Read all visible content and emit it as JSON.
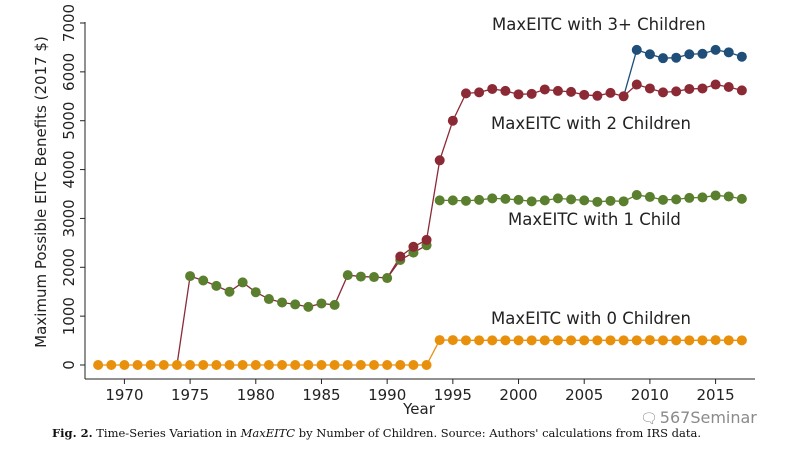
{
  "chart_data": {
    "type": "line",
    "xlabel": "Year",
    "ylabel": "Maximum Possible EITC Benefits (2017 $)",
    "xlim": [
      1967,
      2018
    ],
    "ylim": [
      0,
      7000
    ],
    "xticks": [
      1970,
      1975,
      1980,
      1985,
      1990,
      1995,
      2000,
      2005,
      2010,
      2015
    ],
    "yticks": [
      0,
      1000,
      2000,
      3000,
      4000,
      5000,
      6000,
      7000
    ],
    "grid": false,
    "series": [
      {
        "name": "MaxEITC with 0 Children",
        "color": "#e8900c",
        "line_color": "#e8900c",
        "x": [
          1968,
          1969,
          1970,
          1971,
          1972,
          1973,
          1974,
          1975,
          1976,
          1977,
          1978,
          1979,
          1980,
          1981,
          1982,
          1983,
          1984,
          1985,
          1986,
          1987,
          1988,
          1989,
          1990,
          1991,
          1992,
          1993,
          1994,
          1995,
          1996,
          1997,
          1998,
          1999,
          2000,
          2001,
          2002,
          2003,
          2004,
          2005,
          2006,
          2007,
          2008,
          2009,
          2010,
          2011,
          2012,
          2013,
          2014,
          2015,
          2016,
          2017
        ],
        "y": [
          0,
          0,
          0,
          0,
          0,
          0,
          0,
          0,
          0,
          0,
          0,
          0,
          0,
          0,
          0,
          0,
          0,
          0,
          0,
          0,
          0,
          0,
          0,
          0,
          0,
          0,
          510,
          510,
          505,
          505,
          505,
          505,
          505,
          505,
          505,
          505,
          505,
          505,
          505,
          505,
          505,
          505,
          510,
          505,
          505,
          505,
          505,
          510,
          505,
          505
        ]
      },
      {
        "name": "MaxEITC with 1 Child",
        "color": "#5a7f2e",
        "line_color": "#8a2a3a",
        "x": [
          1975,
          1976,
          1977,
          1978,
          1979,
          1980,
          1981,
          1982,
          1983,
          1984,
          1985,
          1986,
          1987,
          1988,
          1989,
          1990,
          1991,
          1992,
          1993,
          1994,
          1995,
          1996,
          1997,
          1998,
          1999,
          2000,
          2001,
          2002,
          2003,
          2004,
          2005,
          2006,
          2007,
          2008,
          2009,
          2010,
          2011,
          2012,
          2013,
          2014,
          2015,
          2016,
          2017
        ],
        "y": [
          1820,
          1730,
          1620,
          1500,
          1690,
          1490,
          1350,
          1280,
          1240,
          1190,
          1260,
          1230,
          1840,
          1810,
          1800,
          1780,
          2150,
          2300,
          2450,
          3370,
          3370,
          3360,
          3380,
          3410,
          3400,
          3380,
          3350,
          3370,
          3410,
          3390,
          3370,
          3340,
          3360,
          3350,
          3480,
          3440,
          3380,
          3390,
          3420,
          3430,
          3470,
          3450,
          3400
        ]
      },
      {
        "name": "MaxEITC with 2 Children",
        "color": "#8b2a35",
        "line_color": "#8b2a35",
        "x": [
          1990,
          1991,
          1992,
          1993,
          1994,
          1995,
          1996,
          1997,
          1998,
          1999,
          2000,
          2001,
          2002,
          2003,
          2004,
          2005,
          2006,
          2007,
          2008,
          2009,
          2010,
          2011,
          2012,
          2013,
          2014,
          2015,
          2016,
          2017
        ],
        "y": [
          1780,
          2220,
          2420,
          2560,
          4190,
          5000,
          5560,
          5580,
          5650,
          5610,
          5540,
          5550,
          5640,
          5610,
          5590,
          5530,
          5510,
          5570,
          5500,
          5740,
          5660,
          5580,
          5600,
          5650,
          5660,
          5740,
          5690,
          5620
        ]
      },
      {
        "name": "MaxEITC with 3+ Children",
        "color": "#1f4e79",
        "line_color": "#1f4e79",
        "x": [
          2008,
          2009,
          2010,
          2011,
          2012,
          2013,
          2014,
          2015,
          2016,
          2017
        ],
        "y": [
          5500,
          6450,
          6360,
          6280,
          6290,
          6360,
          6370,
          6450,
          6400,
          6310
        ]
      }
    ],
    "series_labels": {
      "three_plus": "MaxEITC with 3+ Children",
      "two": "MaxEITC with 2 Children",
      "one": "MaxEITC with 1 Child",
      "zero": "MaxEITC with 0 Children"
    }
  },
  "caption": {
    "fig_label": "Fig. 2.",
    "text_before": " Time-Series Variation in ",
    "italic": "MaxEITC",
    "text_after": " by Number of Children. Source: Authors' calculations from IRS data."
  },
  "watermark": {
    "icon": "wechat-icon",
    "text": "567Seminar"
  }
}
